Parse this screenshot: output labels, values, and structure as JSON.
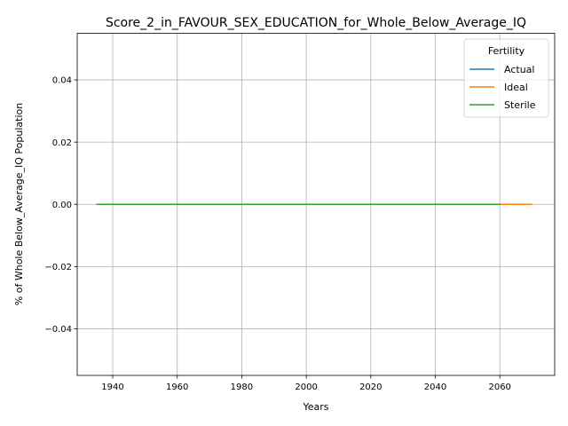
{
  "chart_data": {
    "type": "line",
    "title": "Score_2_in_FAVOUR_SEX_EDUCATION_for_Whole_Below_Average_IQ",
    "xlabel": "Years",
    "ylabel": "% of Whole Below_Average_IQ Population",
    "xlim": [
      1929,
      2077
    ],
    "ylim": [
      -0.055,
      0.055
    ],
    "x_ticks": [
      1940,
      1960,
      1980,
      2000,
      2020,
      2040,
      2060
    ],
    "y_ticks": [
      -0.04,
      -0.02,
      0.0,
      0.02,
      0.04
    ],
    "y_tick_labels": [
      "−0.04",
      "−0.02",
      "0.00",
      "0.02",
      "0.04"
    ],
    "grid": true,
    "legend": {
      "title": "Fertility",
      "placement": "top-right"
    },
    "series": [
      {
        "name": "Actual",
        "color": "#1f77b4",
        "x": [
          1935,
          2060
        ],
        "values": [
          0,
          0
        ]
      },
      {
        "name": "Ideal",
        "color": "#ff7f0e",
        "x": [
          1935,
          2070
        ],
        "values": [
          0,
          0
        ]
      },
      {
        "name": "Sterile",
        "color": "#2ca02c",
        "x": [
          1935,
          2060
        ],
        "values": [
          0,
          0
        ]
      }
    ]
  }
}
